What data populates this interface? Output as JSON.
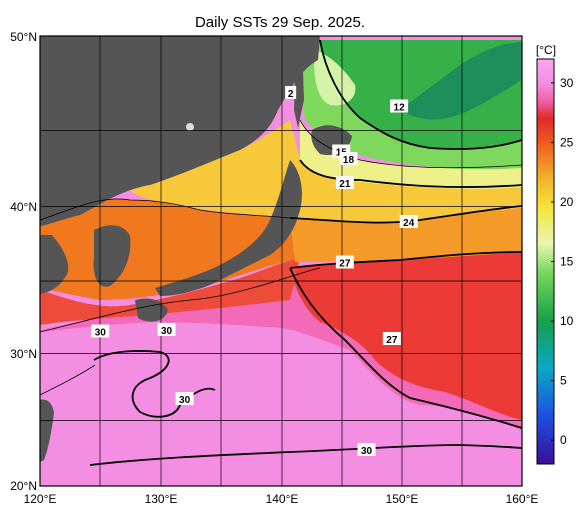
{
  "title": "Daily SSTs 29 Sep. 2025.",
  "lon_ticks": [
    "120°E",
    "130°E",
    "140°E",
    "150°E",
    "160°E"
  ],
  "lat_ticks": [
    "50°N",
    "40°N",
    "30°N",
    "20°N"
  ],
  "colorbar": {
    "unit": "[°C]",
    "ticks": [
      "30",
      "25",
      "20",
      "15",
      "10",
      "5",
      "0"
    ],
    "range": [
      -2,
      32
    ],
    "stops": [
      {
        "t": -2,
        "c": "#3a0f9a"
      },
      {
        "t": 2,
        "c": "#1f4fe0"
      },
      {
        "t": 6,
        "c": "#0aa8c8"
      },
      {
        "t": 10,
        "c": "#18a04a"
      },
      {
        "t": 14,
        "c": "#74d65a"
      },
      {
        "t": 16.5,
        "c": "#e8f6b0"
      },
      {
        "t": 19.5,
        "c": "#f6e43a"
      },
      {
        "t": 22,
        "c": "#f4b02a"
      },
      {
        "t": 25,
        "c": "#ee5a20"
      },
      {
        "t": 27,
        "c": "#e02a28"
      },
      {
        "t": 28.5,
        "c": "#f060a8"
      },
      {
        "t": 30,
        "c": "#f48ee2"
      },
      {
        "t": 32,
        "c": "#f8a8ee"
      }
    ]
  },
  "isotherm_labels": [
    {
      "text": "2",
      "lon": 140.8,
      "lat": 46.2
    },
    {
      "text": "12",
      "lon": 149.8,
      "lat": 45.3
    },
    {
      "text": "15",
      "lon": 145.0,
      "lat": 42.3
    },
    {
      "text": "18",
      "lon": 145.6,
      "lat": 41.8
    },
    {
      "text": "21",
      "lon": 145.3,
      "lat": 40.2
    },
    {
      "text": "24",
      "lon": 150.6,
      "lat": 37.6
    },
    {
      "text": "27",
      "lon": 145.3,
      "lat": 34.9
    },
    {
      "text": "27",
      "lon": 149.2,
      "lat": 29.8
    },
    {
      "text": "30",
      "lon": 125.0,
      "lat": 30.3
    },
    {
      "text": "30",
      "lon": 130.5,
      "lat": 30.4
    },
    {
      "text": "30",
      "lon": 132.0,
      "lat": 25.8
    },
    {
      "text": "30",
      "lon": 147.1,
      "lat": 22.4
    }
  ]
}
